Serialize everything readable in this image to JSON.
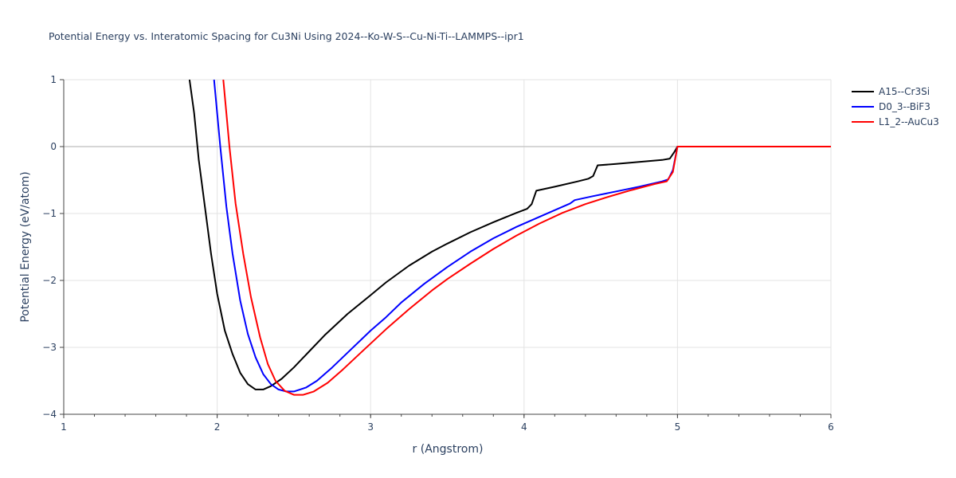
{
  "chart_data": {
    "type": "line",
    "title": "Potential Energy vs. Interatomic Spacing for Cu3Ni Using 2024--Ko-W-S--Cu-Ni-Ti--LAMMPS--ipr1",
    "xlabel": "r (Angstrom)",
    "ylabel": "Potential Energy (eV/atom)",
    "xlim": [
      1,
      6
    ],
    "ylim": [
      -4,
      1
    ],
    "x_ticks": [
      "1",
      "2",
      "3",
      "4",
      "5",
      "6"
    ],
    "y_ticks": [
      "−4",
      "−3",
      "−2",
      "−1",
      "0",
      "1"
    ],
    "legend_position": "top-right",
    "grid": true,
    "series": [
      {
        "name": "A15--Cr3Si",
        "color": "#000000",
        "points": [
          [
            1.82,
            1.0
          ],
          [
            1.85,
            0.5
          ],
          [
            1.88,
            -0.2
          ],
          [
            1.92,
            -0.9
          ],
          [
            1.96,
            -1.6
          ],
          [
            2.0,
            -2.2
          ],
          [
            2.05,
            -2.75
          ],
          [
            2.1,
            -3.1
          ],
          [
            2.15,
            -3.38
          ],
          [
            2.2,
            -3.55
          ],
          [
            2.25,
            -3.63
          ],
          [
            2.3,
            -3.63
          ],
          [
            2.35,
            -3.58
          ],
          [
            2.42,
            -3.47
          ],
          [
            2.5,
            -3.3
          ],
          [
            2.6,
            -3.06
          ],
          [
            2.7,
            -2.82
          ],
          [
            2.85,
            -2.5
          ],
          [
            3.0,
            -2.22
          ],
          [
            3.1,
            -2.03
          ],
          [
            3.25,
            -1.78
          ],
          [
            3.4,
            -1.57
          ],
          [
            3.5,
            -1.45
          ],
          [
            3.65,
            -1.28
          ],
          [
            3.8,
            -1.13
          ],
          [
            3.95,
            -0.99
          ],
          [
            4.02,
            -0.93
          ],
          [
            4.05,
            -0.86
          ],
          [
            4.08,
            -0.66
          ],
          [
            4.2,
            -0.6
          ],
          [
            4.35,
            -0.52
          ],
          [
            4.42,
            -0.48
          ],
          [
            4.45,
            -0.44
          ],
          [
            4.48,
            -0.28
          ],
          [
            4.6,
            -0.26
          ],
          [
            4.75,
            -0.23
          ],
          [
            4.9,
            -0.2
          ],
          [
            4.95,
            -0.18
          ],
          [
            4.98,
            -0.08
          ],
          [
            5.0,
            0.0
          ],
          [
            6.0,
            0.0
          ]
        ]
      },
      {
        "name": "D0_3--BiF3",
        "color": "#0000ff",
        "points": [
          [
            1.98,
            1.0
          ],
          [
            2.02,
            0.0
          ],
          [
            2.06,
            -0.9
          ],
          [
            2.1,
            -1.6
          ],
          [
            2.15,
            -2.3
          ],
          [
            2.2,
            -2.8
          ],
          [
            2.25,
            -3.15
          ],
          [
            2.3,
            -3.4
          ],
          [
            2.35,
            -3.55
          ],
          [
            2.4,
            -3.63
          ],
          [
            2.45,
            -3.66
          ],
          [
            2.5,
            -3.66
          ],
          [
            2.58,
            -3.6
          ],
          [
            2.65,
            -3.5
          ],
          [
            2.75,
            -3.3
          ],
          [
            2.85,
            -3.08
          ],
          [
            3.0,
            -2.75
          ],
          [
            3.1,
            -2.55
          ],
          [
            3.2,
            -2.33
          ],
          [
            3.35,
            -2.05
          ],
          [
            3.5,
            -1.8
          ],
          [
            3.65,
            -1.57
          ],
          [
            3.8,
            -1.37
          ],
          [
            3.95,
            -1.2
          ],
          [
            4.1,
            -1.05
          ],
          [
            4.2,
            -0.95
          ],
          [
            4.3,
            -0.85
          ],
          [
            4.33,
            -0.8
          ],
          [
            4.45,
            -0.74
          ],
          [
            4.6,
            -0.67
          ],
          [
            4.75,
            -0.6
          ],
          [
            4.9,
            -0.52
          ],
          [
            4.94,
            -0.49
          ],
          [
            4.97,
            -0.35
          ],
          [
            5.0,
            0.0
          ],
          [
            6.0,
            0.0
          ]
        ]
      },
      {
        "name": "L1_2--AuCu3",
        "color": "#ff0000",
        "points": [
          [
            2.04,
            1.0
          ],
          [
            2.08,
            0.0
          ],
          [
            2.12,
            -0.85
          ],
          [
            2.17,
            -1.6
          ],
          [
            2.22,
            -2.25
          ],
          [
            2.28,
            -2.85
          ],
          [
            2.33,
            -3.25
          ],
          [
            2.38,
            -3.5
          ],
          [
            2.44,
            -3.65
          ],
          [
            2.5,
            -3.71
          ],
          [
            2.56,
            -3.71
          ],
          [
            2.63,
            -3.66
          ],
          [
            2.72,
            -3.53
          ],
          [
            2.82,
            -3.33
          ],
          [
            2.95,
            -3.05
          ],
          [
            3.1,
            -2.73
          ],
          [
            3.25,
            -2.43
          ],
          [
            3.4,
            -2.15
          ],
          [
            3.5,
            -1.98
          ],
          [
            3.65,
            -1.75
          ],
          [
            3.8,
            -1.53
          ],
          [
            3.95,
            -1.33
          ],
          [
            4.1,
            -1.15
          ],
          [
            4.25,
            -0.99
          ],
          [
            4.4,
            -0.86
          ],
          [
            4.55,
            -0.75
          ],
          [
            4.7,
            -0.65
          ],
          [
            4.85,
            -0.56
          ],
          [
            4.93,
            -0.52
          ],
          [
            4.97,
            -0.38
          ],
          [
            5.0,
            0.0
          ],
          [
            6.0,
            0.0
          ]
        ]
      }
    ]
  }
}
